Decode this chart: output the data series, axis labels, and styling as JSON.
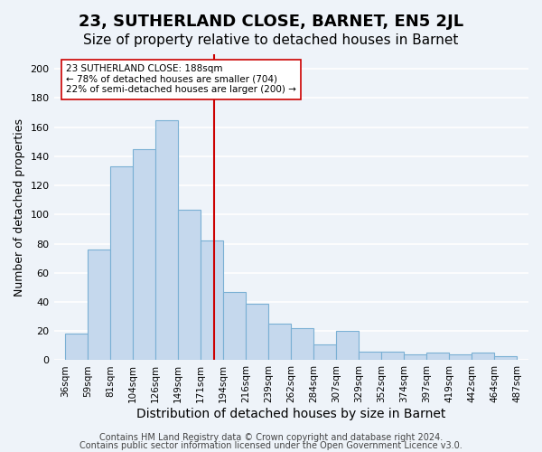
{
  "title": "23, SUTHERLAND CLOSE, BARNET, EN5 2JL",
  "subtitle": "Size of property relative to detached houses in Barnet",
  "xlabel": "Distribution of detached houses by size in Barnet",
  "ylabel": "Number of detached properties",
  "bar_labels": [
    "36sqm",
    "59sqm",
    "81sqm",
    "104sqm",
    "126sqm",
    "149sqm",
    "171sqm",
    "194sqm",
    "216sqm",
    "239sqm",
    "262sqm",
    "284sqm",
    "307sqm",
    "329sqm",
    "352sqm",
    "374sqm",
    "397sqm",
    "419sqm",
    "442sqm",
    "464sqm",
    "487sqm"
  ],
  "bar_values": [
    18,
    76,
    133,
    145,
    165,
    103,
    82,
    47,
    39,
    25,
    22,
    11,
    20,
    6,
    6,
    4,
    5,
    4,
    5,
    3
  ],
  "bar_color": "#c5d8ed",
  "bar_edgecolor": "#7ab0d4",
  "bin_width": 23,
  "vline_x": 188,
  "vline_color": "#cc0000",
  "annotation_title": "23 SUTHERLAND CLOSE: 188sqm",
  "annotation_line1": "← 78% of detached houses are smaller (704)",
  "annotation_line2": "22% of semi-detached houses are larger (200) →",
  "annotation_box_color": "#ffffff",
  "annotation_box_edgecolor": "#cc0000",
  "ylim": [
    0,
    210
  ],
  "yticks": [
    0,
    20,
    40,
    60,
    80,
    100,
    120,
    140,
    160,
    180,
    200
  ],
  "footer1": "Contains HM Land Registry data © Crown copyright and database right 2024.",
  "footer2": "Contains public sector information licensed under the Open Government Licence v3.0.",
  "background_color": "#eef3f9",
  "plot_background": "#eef3f9",
  "grid_color": "#ffffff",
  "title_fontsize": 13,
  "subtitle_fontsize": 11,
  "xlabel_fontsize": 10,
  "ylabel_fontsize": 9,
  "tick_fontsize": 8,
  "footer_fontsize": 7
}
